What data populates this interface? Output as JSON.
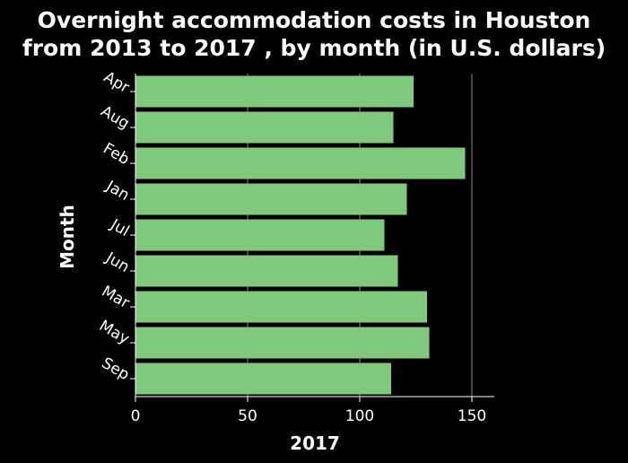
{
  "chart_data": {
    "type": "bar",
    "orientation": "horizontal",
    "title_lines": [
      "Overnight accommodation costs in Houston",
      "from 2013 to 2017 , by month (in U.S. dollars)"
    ],
    "xlabel": "2017",
    "ylabel": "Month",
    "categories": [
      "Apr",
      "Aug",
      "Feb",
      "Jan",
      "Jul",
      "Jun",
      "Mar",
      "May",
      "Sep"
    ],
    "values": [
      124,
      115,
      147,
      121,
      111,
      117,
      130,
      131,
      114
    ],
    "xlim": [
      0,
      160
    ],
    "xticks": [
      0,
      50,
      100,
      150
    ],
    "grid": "vertical",
    "legend": "none"
  },
  "colors": {
    "background": "#000000",
    "bar": "#7fc97f",
    "axis": "#ffffff",
    "grid": "#888888",
    "text": "#ffffff"
  }
}
